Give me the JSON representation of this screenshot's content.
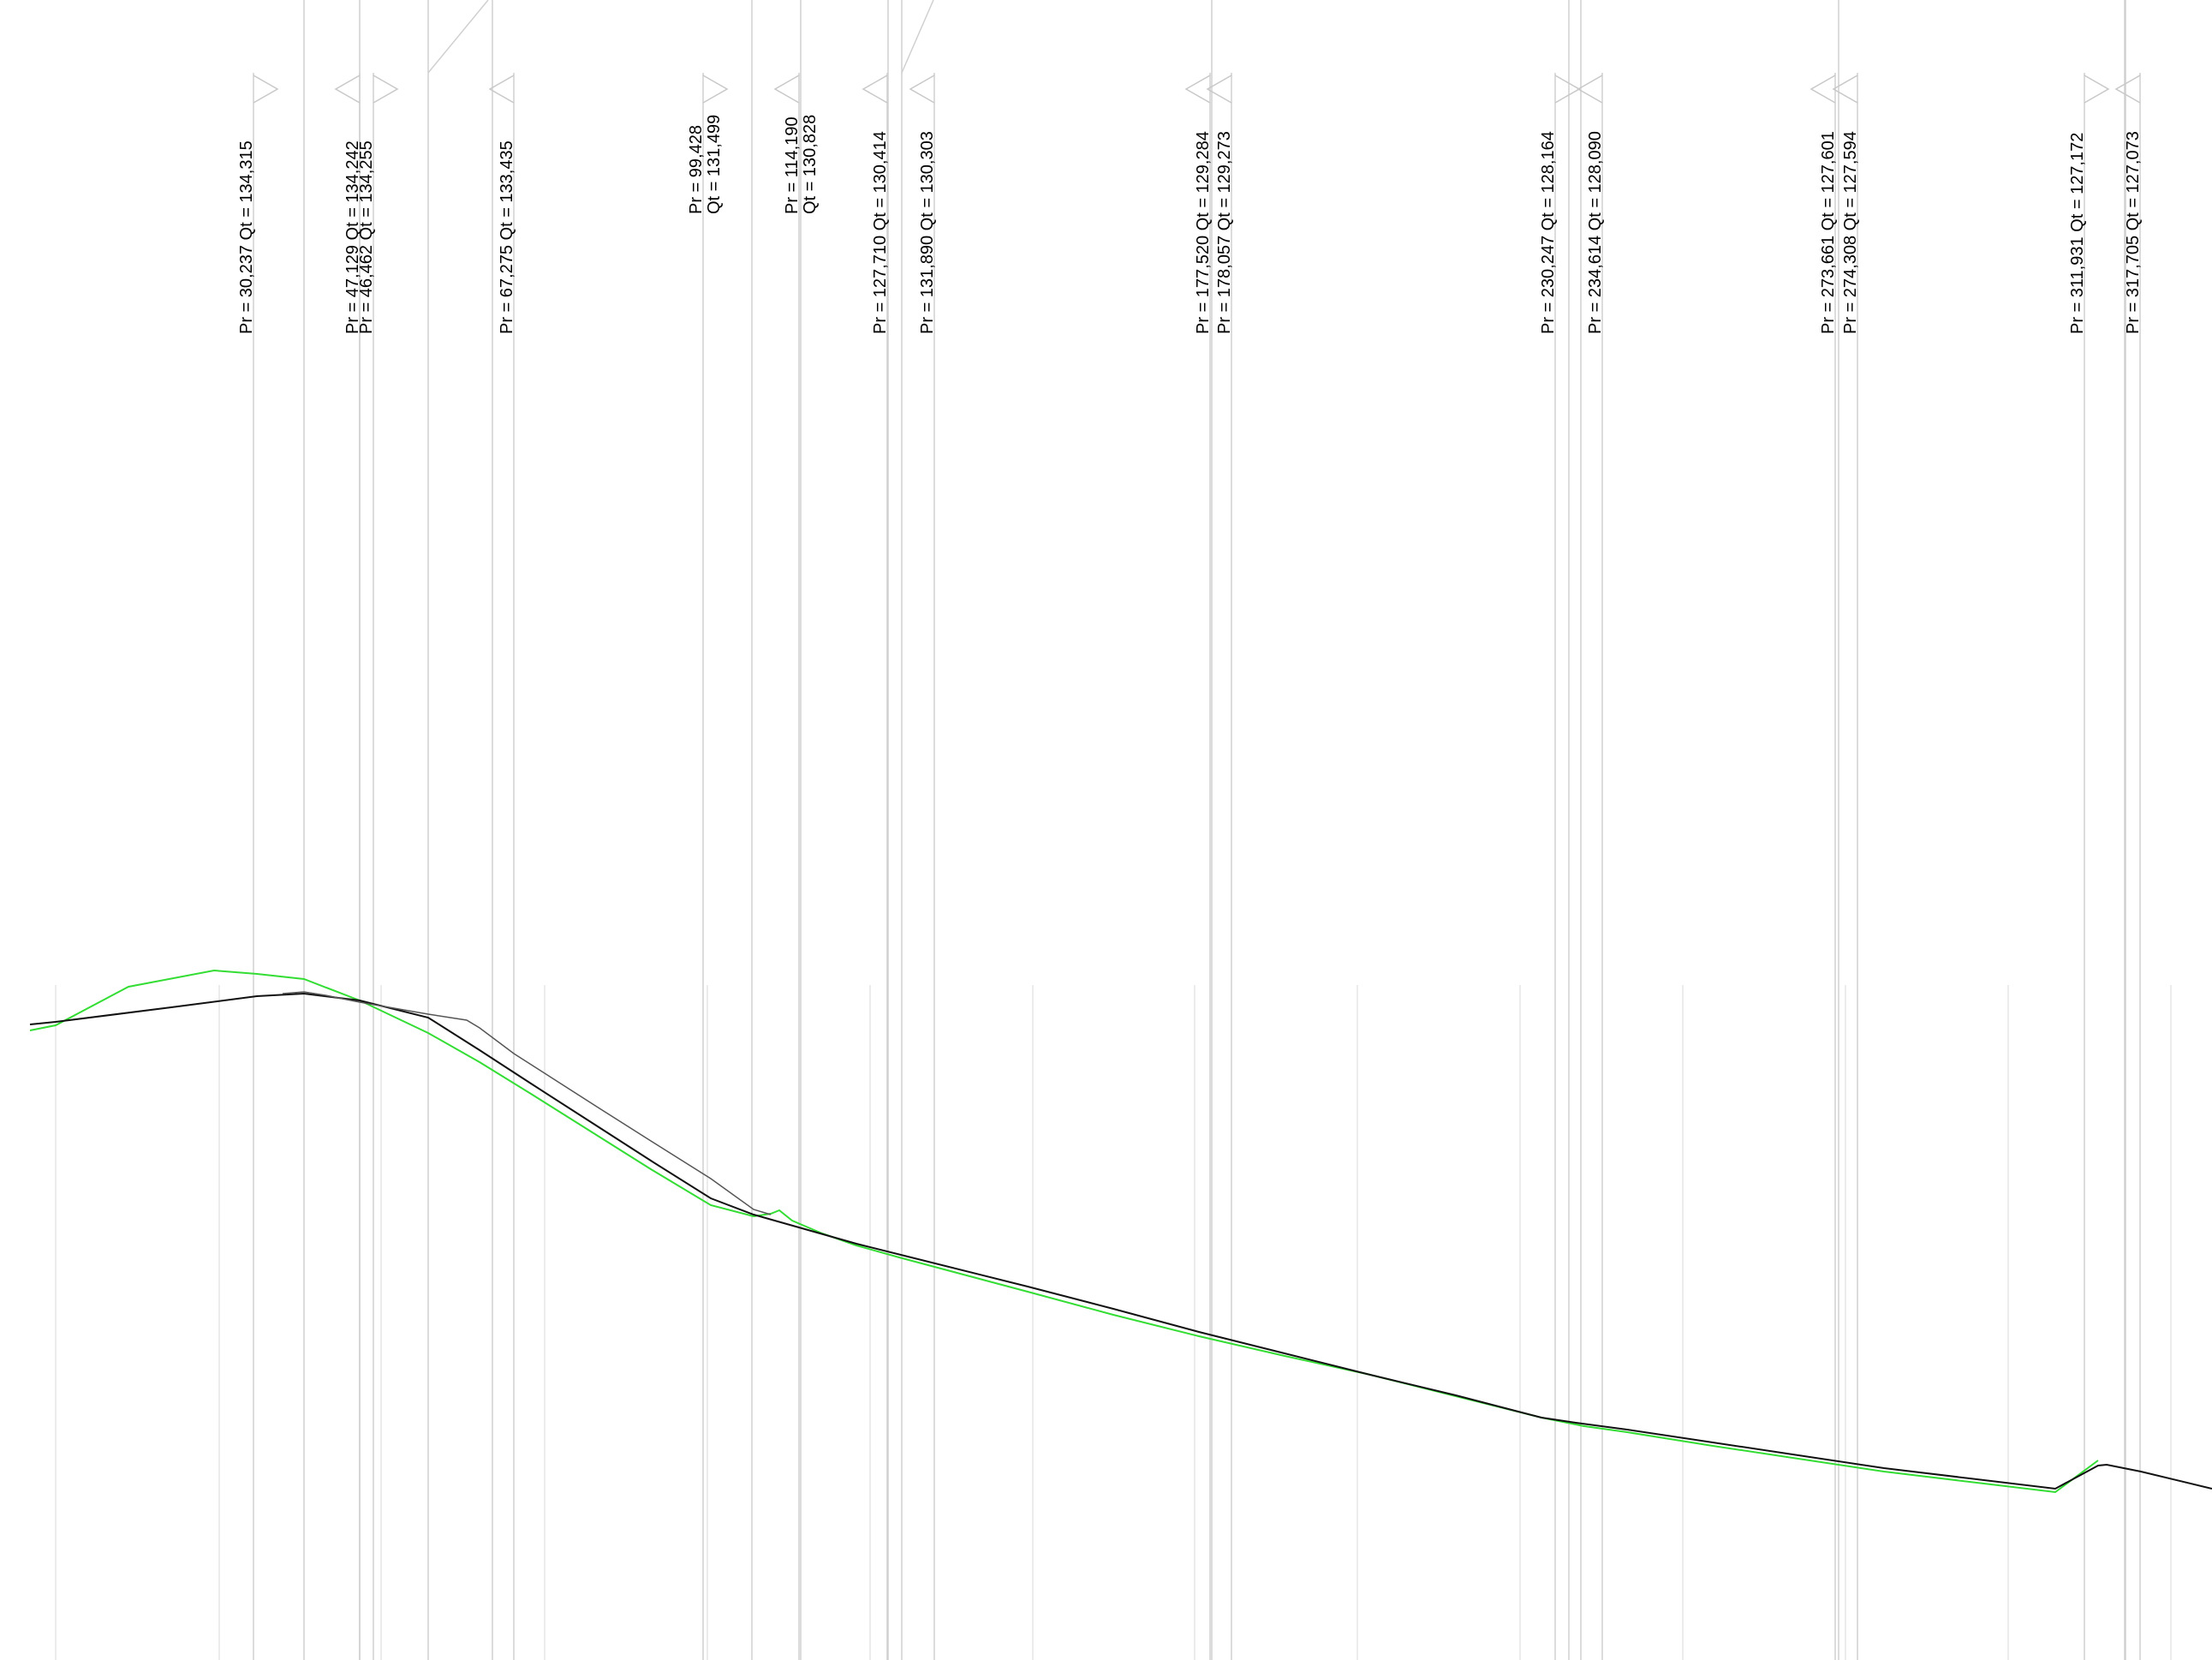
{
  "markers": [
    {
      "label": "Pr = 30,237  Qt = 134,315"
    },
    {
      "label": "Pr = 47,129  Qt = 134,242"
    },
    {
      "label": "Pr = 46,462  Qt = 134,255"
    },
    {
      "label": "Pr = 67,275  Qt = 133,435"
    },
    {
      "label": "Pr = 99,428",
      "label2": "Qt = 131,499"
    },
    {
      "label": "Pr = 114,190",
      "label2": "Qt = 130,828"
    },
    {
      "label": "Pr = 127,710  Qt = 130,414"
    },
    {
      "label": "Pr = 131,890  Qt = 130,303"
    },
    {
      "label": "Pr = 177,520  Qt = 129,284"
    },
    {
      "label": "Pr = 178,057  Qt = 129,273"
    },
    {
      "label": "Pr = 230,247  Qt = 128,164"
    },
    {
      "label": "Pr = 234,614  Qt = 128,090"
    },
    {
      "label": "Pr = 273,661  Qt = 127,601"
    },
    {
      "label": "Pr = 274,308  Qt = 127,594"
    },
    {
      "label": "Pr = 311,931  Qt = 127,172"
    },
    {
      "label": "Pr = 317,705  Qt = 127,073"
    }
  ],
  "colors": {
    "existing_terrain": "#33dd33",
    "design_profile": "#111111",
    "secondary_profile": "#555555",
    "guide_lines": "#d0d0d0"
  }
}
